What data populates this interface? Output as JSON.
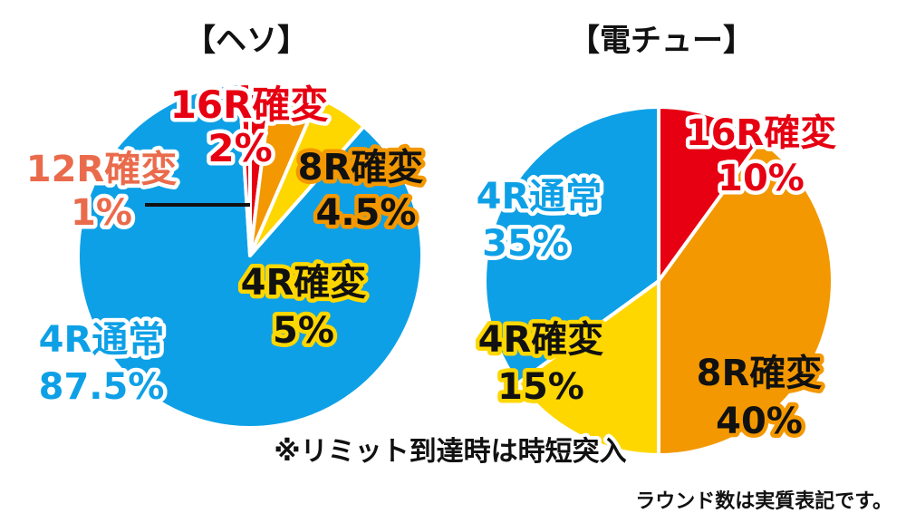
{
  "chart_data": [
    {
      "type": "pie",
      "title": "【ヘソ】",
      "slices": [
        {
          "name": "16R確変",
          "value": 2,
          "value_label": "2%",
          "color": "#e60012"
        },
        {
          "name": "8R確変",
          "value": 4.5,
          "value_label": "4.5%",
          "color": "#f39800"
        },
        {
          "name": "4R確変",
          "value": 5,
          "value_label": "5%",
          "color": "#ffd700"
        },
        {
          "name": "4R通常",
          "value": 87.5,
          "value_label": "87.5%",
          "color": "#0ea0e6"
        },
        {
          "name": "12R確変",
          "value": 1,
          "value_label": "1%",
          "color": "#e60012"
        }
      ]
    },
    {
      "type": "pie",
      "title": "【電チュー】",
      "slices": [
        {
          "name": "16R確変",
          "value": 10,
          "value_label": "10%",
          "color": "#e60012"
        },
        {
          "name": "8R確変",
          "value": 40,
          "value_label": "40%",
          "color": "#f39800"
        },
        {
          "name": "4R確変",
          "value": 15,
          "value_label": "15%",
          "color": "#ffd700"
        },
        {
          "name": "4R通常",
          "value": 35,
          "value_label": "35%",
          "color": "#0ea0e6"
        }
      ]
    }
  ],
  "notes": {
    "limit": "※リミット到達時は時短突入",
    "rounds": "ラウンド数は実質表記です。"
  },
  "colors": {
    "text_dark": "#111111",
    "outline_white": "#ffffff",
    "outline_yellow": "#ffd700",
    "outline_orange": "#f39800"
  }
}
